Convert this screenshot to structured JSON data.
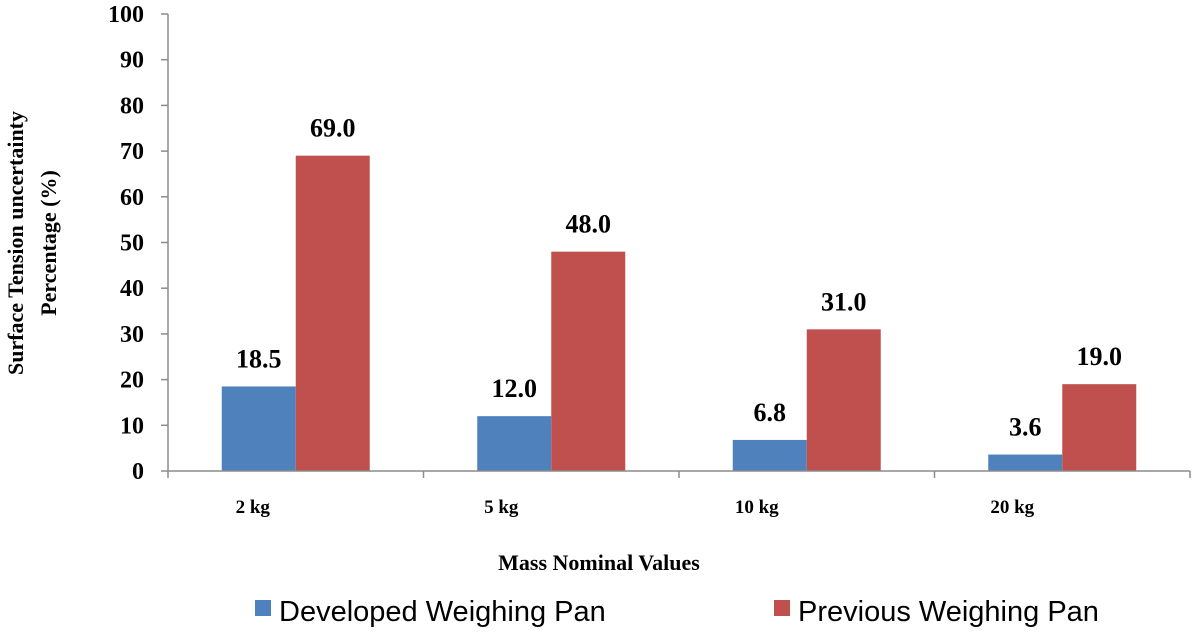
{
  "chart_data": {
    "type": "bar",
    "title": "",
    "xlabel": "Mass Nominal Values",
    "ylabel_lines": [
      "Surface Tension uncertainty",
      "Percentage (%)"
    ],
    "ylim": [
      0,
      100
    ],
    "yticks": [
      0,
      10,
      20,
      30,
      40,
      50,
      60,
      70,
      80,
      90,
      100
    ],
    "grid": false,
    "legend_position": "bottom",
    "categories": [
      "2 kg",
      "5 kg",
      "10 kg",
      "20 kg"
    ],
    "series": [
      {
        "name": "Developed Weighing Pan",
        "color": "#4f81bd",
        "values": [
          18.5,
          12.0,
          6.8,
          3.6
        ],
        "labels": [
          "18.5",
          "12.0",
          "6.8",
          "3.6"
        ]
      },
      {
        "name": "Previous Weighing Pan",
        "color": "#c0504d",
        "values": [
          69.0,
          48.0,
          31.0,
          19.0
        ],
        "labels": [
          "69.0",
          "48.0",
          "31.0",
          "19.0"
        ]
      }
    ]
  }
}
